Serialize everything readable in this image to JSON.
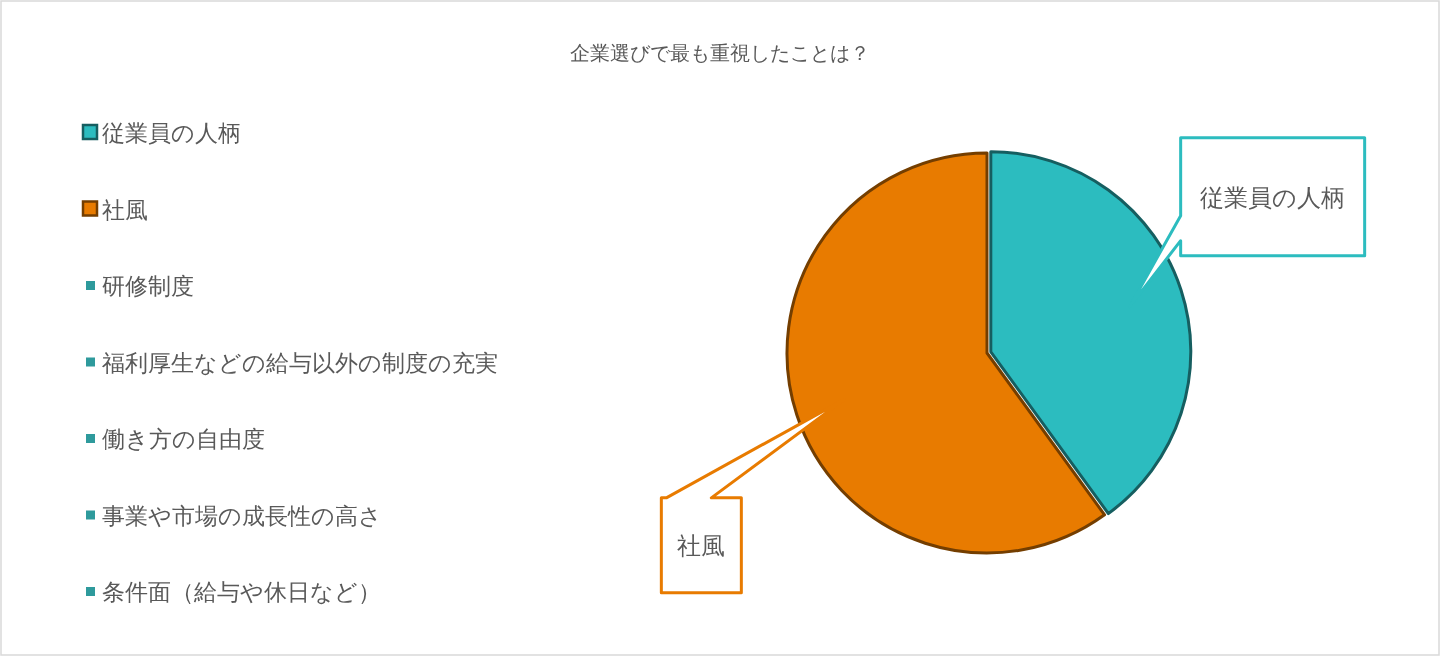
{
  "chart_data": {
    "type": "pie",
    "title": "企業選びで最も重視したことは？",
    "categories": [
      "従業員の人柄",
      "社風",
      "研修制度",
      "福利厚生などの給与以外の制度の充実",
      "働き方の自由度",
      "事業や市場の成長性の高さ",
      "条件面（給与や休日など）"
    ],
    "values": [
      40,
      60,
      0,
      0,
      0,
      0,
      0
    ],
    "colors": [
      "#2cbcbf",
      "#e87b00",
      "#2e9a9c",
      "#2e9a9c",
      "#2e9a9c",
      "#2e9a9c",
      "#2e9a9c"
    ],
    "value_labels": [
      "従業員の人柄",
      "社風",
      null,
      null,
      null,
      null,
      null
    ],
    "legend": "left"
  }
}
